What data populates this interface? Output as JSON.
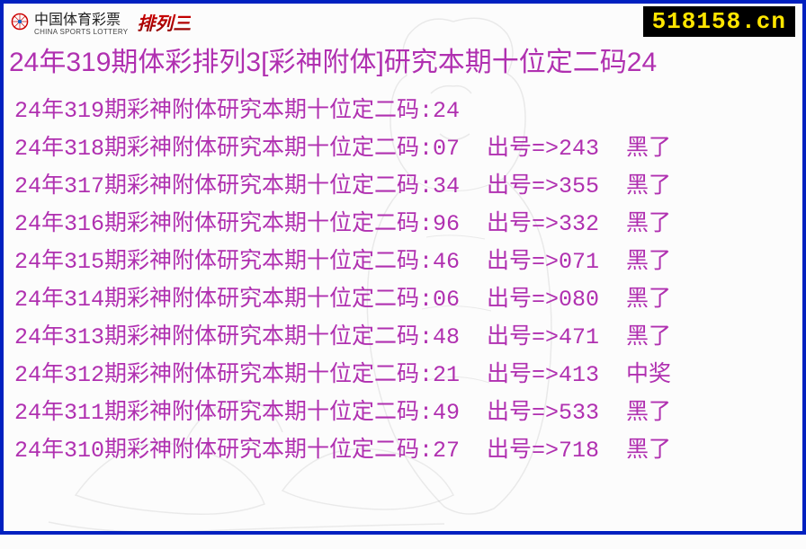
{
  "colors": {
    "border": "#0020c0",
    "text": "#b030b0",
    "badge_bg": "#000000",
    "badge_fg": "#ffe600",
    "red": "#c00000"
  },
  "header": {
    "logo_cn": "中国体育彩票",
    "logo_en": "CHINA SPORTS LOTTERY",
    "brand": "排列三",
    "site": "518158.cn"
  },
  "title": "24年319期体彩排列3[彩神附体]研究本期十位定二码24",
  "row_prefix": "24年",
  "row_mid": "期彩神附体研究本期十位定二码:",
  "draw_label": "出号=>",
  "status_miss": "黑了",
  "status_hit": "中奖",
  "rows": [
    {
      "period": "319",
      "code": "24",
      "draw": "",
      "status": ""
    },
    {
      "period": "318",
      "code": "07",
      "draw": "243",
      "status": "黑了"
    },
    {
      "period": "317",
      "code": "34",
      "draw": "355",
      "status": "黑了"
    },
    {
      "period": "316",
      "code": "96",
      "draw": "332",
      "status": "黑了"
    },
    {
      "period": "315",
      "code": "46",
      "draw": "071",
      "status": "黑了"
    },
    {
      "period": "314",
      "code": "06",
      "draw": "080",
      "status": "黑了"
    },
    {
      "period": "313",
      "code": "48",
      "draw": "471",
      "status": "黑了"
    },
    {
      "period": "312",
      "code": "21",
      "draw": "413",
      "status": "中奖"
    },
    {
      "period": "311",
      "code": "49",
      "draw": "533",
      "status": "黑了"
    },
    {
      "period": "310",
      "code": "27",
      "draw": "718",
      "status": "黑了"
    }
  ]
}
